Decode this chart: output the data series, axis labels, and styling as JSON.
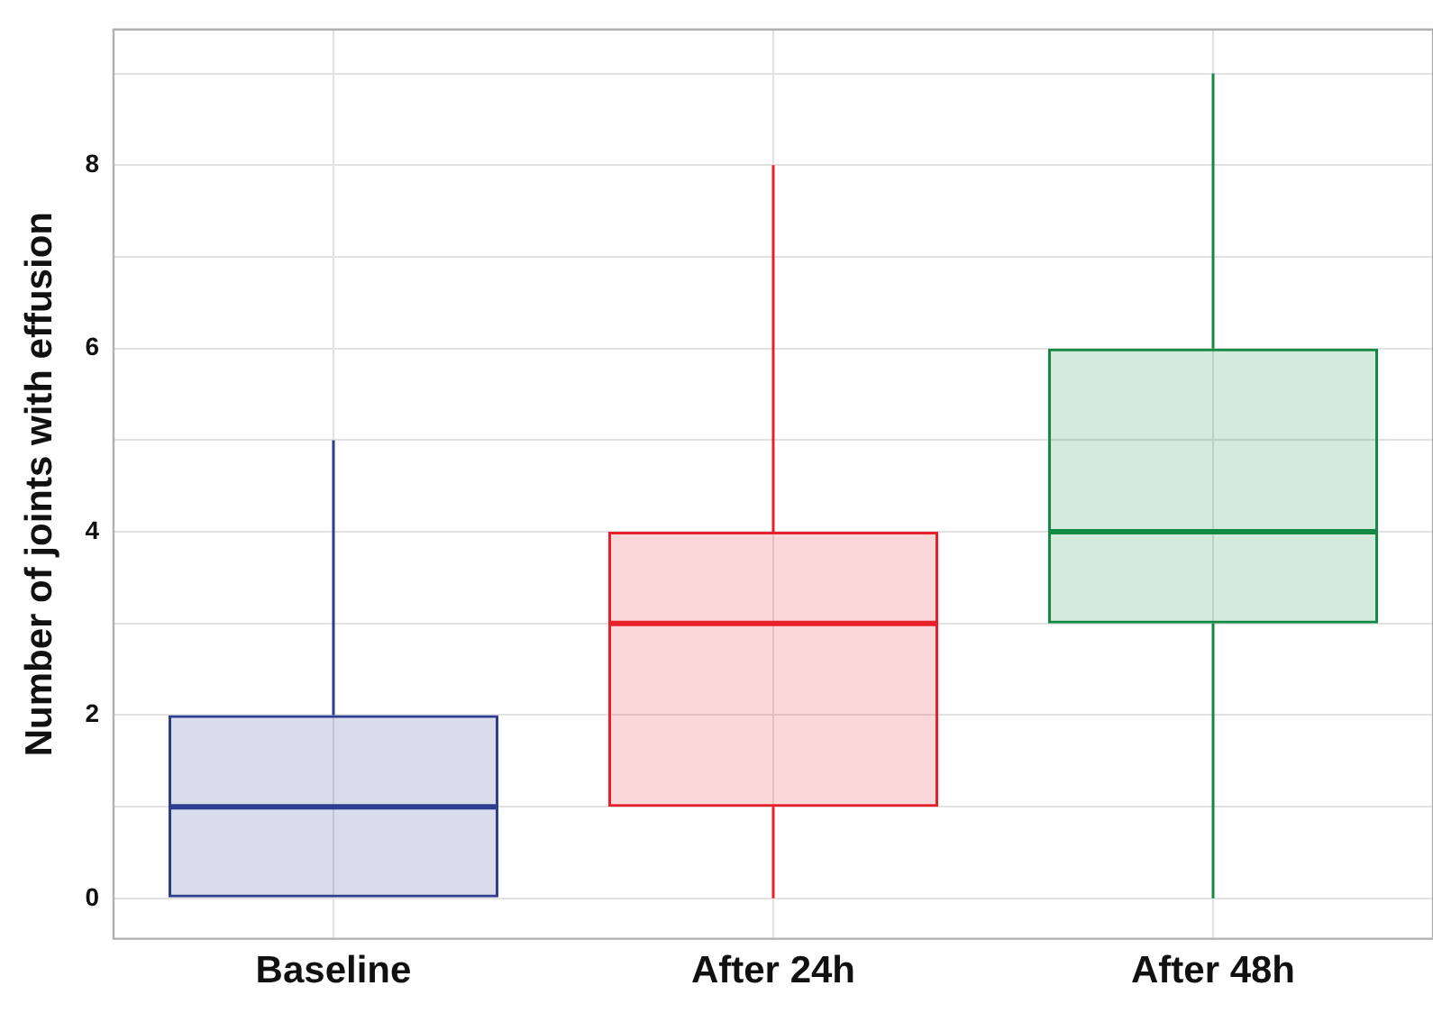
{
  "chart_data": {
    "type": "box",
    "ylabel": "Number of joints with effusion",
    "categories": [
      "Baseline",
      "After 24h",
      "After 48h"
    ],
    "colors": [
      "#2e3d8f",
      "#e8202a",
      "#138a43"
    ],
    "boxes": [
      {
        "low": 0,
        "q1": 0,
        "median": 1,
        "q3": 2,
        "high": 5
      },
      {
        "low": 0,
        "q1": 1,
        "median": 3,
        "q3": 4,
        "high": 8
      },
      {
        "low": 0,
        "q1": 3,
        "median": 4,
        "q3": 6,
        "high": 9
      }
    ],
    "ylim": [
      -0.44,
      9.48
    ],
    "yticks": [
      0,
      {
        "value": 1,
        "label": null
      },
      2,
      {
        "value": 3,
        "label": null
      },
      4,
      {
        "value": 5,
        "label": null
      },
      6,
      {
        "value": 7,
        "label": null
      },
      8,
      {
        "value": 9,
        "label": null
      }
    ],
    "grid": true
  }
}
